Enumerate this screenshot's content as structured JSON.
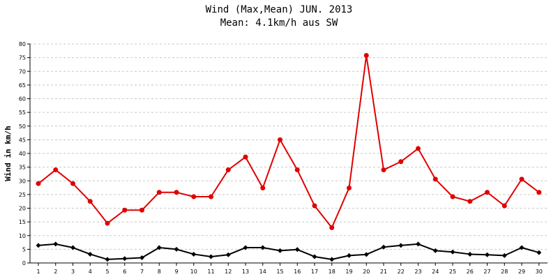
{
  "colors": {
    "max_series": "#e00000",
    "mean_series": "#000000",
    "grid": "#c8c8c8",
    "axis": "#000000"
  },
  "chart_data": {
    "type": "line",
    "title": "Wind (Max,Mean) JUN. 2013",
    "subtitle": "Mean: 4.1km/h aus SW",
    "xlabel": "",
    "ylabel": "Wind in km/h",
    "ylim": [
      0,
      80
    ],
    "yticks": [
      "0",
      "5",
      "10",
      "15",
      "20",
      "25",
      "30",
      "35",
      "40",
      "45",
      "50",
      "55",
      "60",
      "65",
      "70",
      "75",
      "80"
    ],
    "grid": "horizontal dashed",
    "categories": [
      "1",
      "2",
      "3",
      "4",
      "5",
      "6",
      "7",
      "8",
      "9",
      "10",
      "11",
      "12",
      "13",
      "14",
      "15",
      "16",
      "17",
      "18",
      "19",
      "20",
      "21",
      "22",
      "23",
      "24",
      "25",
      "26",
      "27",
      "28",
      "29",
      "30"
    ],
    "series": [
      {
        "marker": "circle",
        "color": "#e00000",
        "values": [
          29.0,
          34.0,
          29.0,
          22.5,
          14.5,
          19.3,
          19.3,
          25.8,
          25.8,
          24.2,
          24.2,
          34.0,
          38.7,
          27.4,
          45.0,
          34.0,
          20.9,
          12.9,
          27.4,
          75.8,
          34.0,
          37.0,
          41.8,
          30.6,
          24.2,
          22.5,
          25.8,
          20.9,
          30.6,
          25.8
        ]
      },
      {
        "marker": "diamond",
        "color": "#000000",
        "values": [
          6.4,
          6.9,
          5.6,
          3.2,
          1.3,
          1.6,
          1.9,
          5.6,
          5.0,
          3.2,
          2.3,
          3.0,
          5.6,
          5.6,
          4.5,
          4.9,
          2.3,
          1.3,
          2.7,
          3.1,
          5.8,
          6.4,
          6.9,
          4.5,
          4.0,
          3.2,
          3.0,
          2.7,
          5.6,
          3.8
        ]
      }
    ]
  }
}
